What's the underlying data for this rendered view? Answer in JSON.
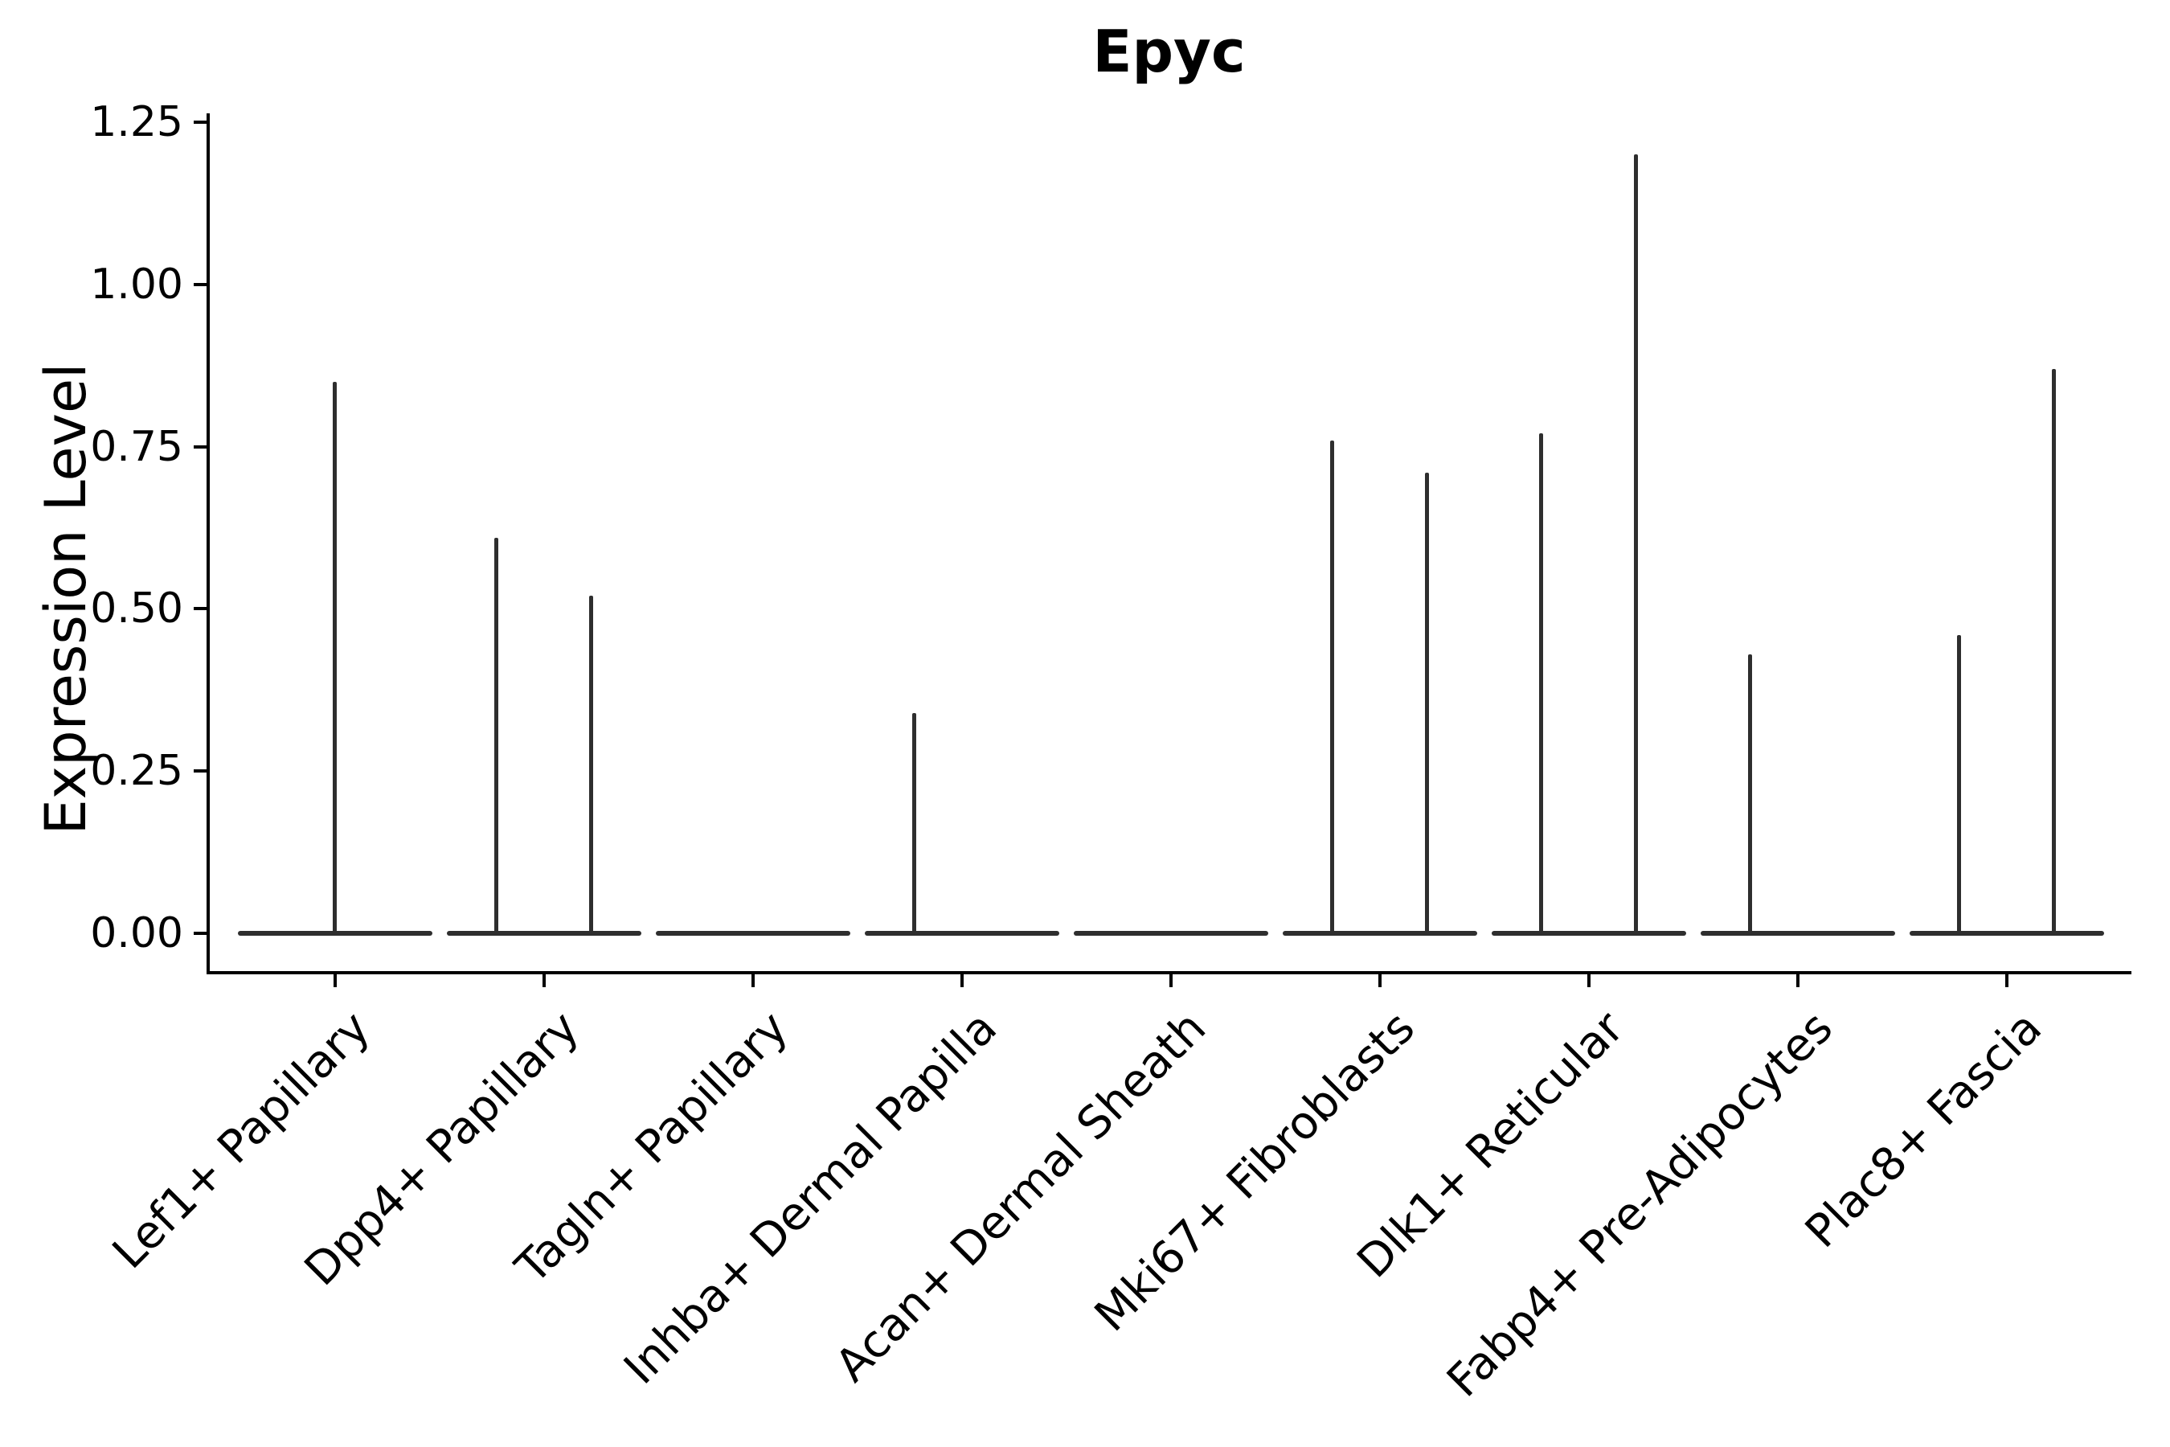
{
  "chart_data": {
    "type": "violin",
    "title": "Epyc",
    "ylabel": "Expression Level",
    "xlabel": "",
    "ylim": [
      0,
      1.25
    ],
    "yticks": [
      "0.00",
      "0.25",
      "0.50",
      "0.75",
      "1.00",
      "1.25"
    ],
    "ytick_values": [
      0,
      0.25,
      0.5,
      0.75,
      1.0,
      1.25
    ],
    "grid": false,
    "legend": "none",
    "baseline_value": 0.0,
    "categories": [
      "Lef1+ Papillary",
      "Dpp4+ Papillary",
      "Tagln+ Papillary",
      "Inhba+ Dermal Papilla",
      "Acan+ Dermal Sheath",
      "Mki67+ Fibroblasts",
      "Dlk1+ Reticular",
      "Fabp4+ Pre-Adipocytes",
      "Plac8+ Fascia"
    ],
    "violins": [
      {
        "category": "Lef1+ Papillary",
        "spikes": [
          {
            "position": "center",
            "max_expression": 0.85
          }
        ]
      },
      {
        "category": "Dpp4+ Papillary",
        "spikes": [
          {
            "position": "left",
            "max_expression": 0.61
          },
          {
            "position": "right",
            "max_expression": 0.52
          }
        ]
      },
      {
        "category": "Tagln+ Papillary",
        "spikes": []
      },
      {
        "category": "Inhba+ Dermal Papilla",
        "spikes": [
          {
            "position": "left",
            "max_expression": 0.34
          }
        ]
      },
      {
        "category": "Acan+ Dermal Sheath",
        "spikes": []
      },
      {
        "category": "Mki67+ Fibroblasts",
        "spikes": [
          {
            "position": "left",
            "max_expression": 0.76
          },
          {
            "position": "right",
            "max_expression": 0.71
          }
        ]
      },
      {
        "category": "Dlk1+ Reticular",
        "spikes": [
          {
            "position": "left",
            "max_expression": 0.77
          },
          {
            "position": "right",
            "max_expression": 1.2
          }
        ]
      },
      {
        "category": "Fabp4+ Pre-Adipocytes",
        "spikes": [
          {
            "position": "left",
            "max_expression": 0.43
          }
        ]
      },
      {
        "category": "Plac8+ Fascia",
        "spikes": [
          {
            "position": "left",
            "max_expression": 0.46
          },
          {
            "position": "right",
            "max_expression": 0.87
          }
        ]
      }
    ],
    "colors": {
      "violin": "#2e2e2e",
      "axis": "#000000",
      "text": "#000000",
      "background": "#ffffff"
    }
  }
}
